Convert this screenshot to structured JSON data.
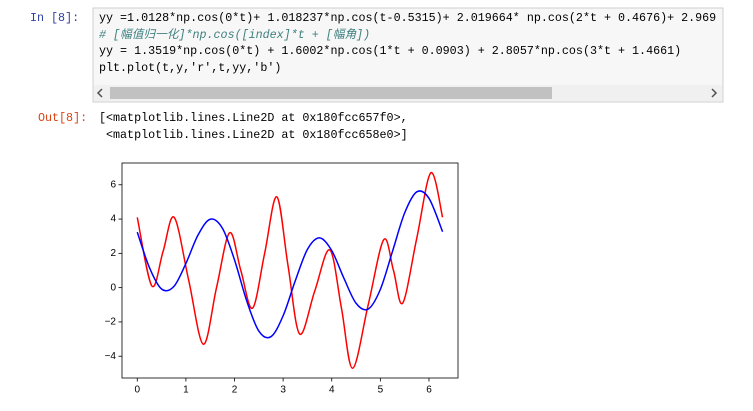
{
  "input_prompt": "In  [8]:",
  "code_lines": [
    "yy =1.0128*np.cos(0*t)+ 1.018237*np.cos(t-0.5315)+ 2.019664* np.cos(2*t + 0.4676)+ 2.969",
    "# [幅值归一化]*np.cos([index]*t + [幅角])",
    "yy = 1.3519*np.cos(0*t) + 1.6002*np.cos(1*t + 0.0903) + 2.8057*np.cos(3*t + 1.4661)",
    "plt.plot(t,y,'r',t,yy,'b')"
  ],
  "output_prompt": "Out[8]:",
  "output_lines": [
    "[<matplotlib.lines.Line2D at 0x180fcc657f0>,",
    " <matplotlib.lines.Line2D at 0x180fcc658e0>]"
  ],
  "chart_data": {
    "type": "line",
    "xlim": [
      -0.314,
      6.597
    ],
    "ylim": [
      -5.27,
      7.27
    ],
    "xticks": [
      0,
      1,
      2,
      3,
      4,
      5,
      6
    ],
    "yticks": [
      {
        "value": -4,
        "label": "−4"
      },
      {
        "value": -2,
        "label": "−2"
      },
      0,
      2,
      4,
      6
    ],
    "series": [
      {
        "color": "#ff0000",
        "x": [
          0,
          0.3,
          0.53,
          0.76,
          1.06,
          1.36,
          1.63,
          1.9,
          2.13,
          2.37,
          2.62,
          2.87,
          3.1,
          3.34,
          3.65,
          3.96,
          4.2,
          4.43,
          4.75,
          5.07,
          5.27,
          5.46,
          5.75,
          6.04,
          6.28
        ],
        "values": [
          4.1,
          0.1,
          2.1,
          4.1,
          0.4,
          -3.3,
          0,
          3.2,
          1.0,
          -1.2,
          2.0,
          5.3,
          1.3,
          -2.7,
          -0.2,
          2.2,
          -1.2,
          -4.7,
          -1.0,
          2.8,
          1.0,
          -0.9,
          2.9,
          6.7,
          4.1
        ]
      },
      {
        "color": "#0000ff",
        "x": [
          0,
          0.25,
          0.5,
          0.75,
          1,
          1.25,
          1.5,
          1.75,
          2,
          2.25,
          2.5,
          2.75,
          3,
          3.25,
          3.5,
          3.75,
          4,
          4.25,
          4.5,
          4.75,
          5,
          5.25,
          5.5,
          5.75,
          6,
          6.28
        ],
        "values": [
          3.24,
          1.17,
          -0.08,
          0.06,
          1.41,
          3.07,
          3.99,
          3.47,
          1.62,
          -0.76,
          -2.53,
          -2.86,
          -1.64,
          0.4,
          2.23,
          2.9,
          2.16,
          0.55,
          -0.91,
          -1.25,
          -0.1,
          2.12,
          4.36,
          5.59,
          5.21,
          3.26
        ]
      }
    ]
  }
}
